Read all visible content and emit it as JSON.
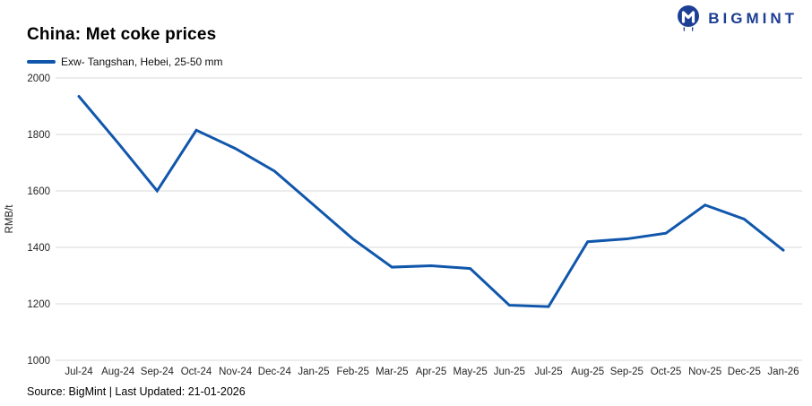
{
  "logo": {
    "brand": "BIGMINT",
    "icon": "bigmint-owl-icon"
  },
  "header": {
    "title": "China: Met coke prices"
  },
  "legend": {
    "label": "Exw- Tangshan, Hebei, 25-50 mm"
  },
  "footer": {
    "source_text": "Source: BigMint | Last Updated: 21-01-2026"
  },
  "colors": {
    "line": "#1057ac",
    "brand_navy": "#1c3e94",
    "gridline": "#d9d9d9",
    "tick_text": "#262626"
  },
  "chart_data": {
    "type": "line",
    "title": "China: Met coke prices",
    "ylabel": "RMB/t",
    "xlabel": "",
    "ylim": [
      1000,
      2000
    ],
    "ytick_interval": 200,
    "grid": true,
    "legend_position": "top-left",
    "categories": [
      "Jul-24",
      "Aug-24",
      "Sep-24",
      "Oct-24",
      "Nov-24",
      "Dec-24",
      "Jan-25",
      "Feb-25",
      "Mar-25",
      "Apr-25",
      "May-25",
      "Jun-25",
      "Jul-25",
      "Aug-25",
      "Sep-25",
      "Oct-25",
      "Nov-25",
      "Dec-25",
      "Jan-26"
    ],
    "series": [
      {
        "name": "Exw- Tangshan, Hebei, 25-50 mm",
        "values": [
          1935,
          1770,
          1600,
          1815,
          1750,
          1670,
          1550,
          1430,
          1330,
          1335,
          1325,
          1195,
          1190,
          1420,
          1430,
          1450,
          1550,
          1500,
          1390
        ]
      }
    ]
  }
}
